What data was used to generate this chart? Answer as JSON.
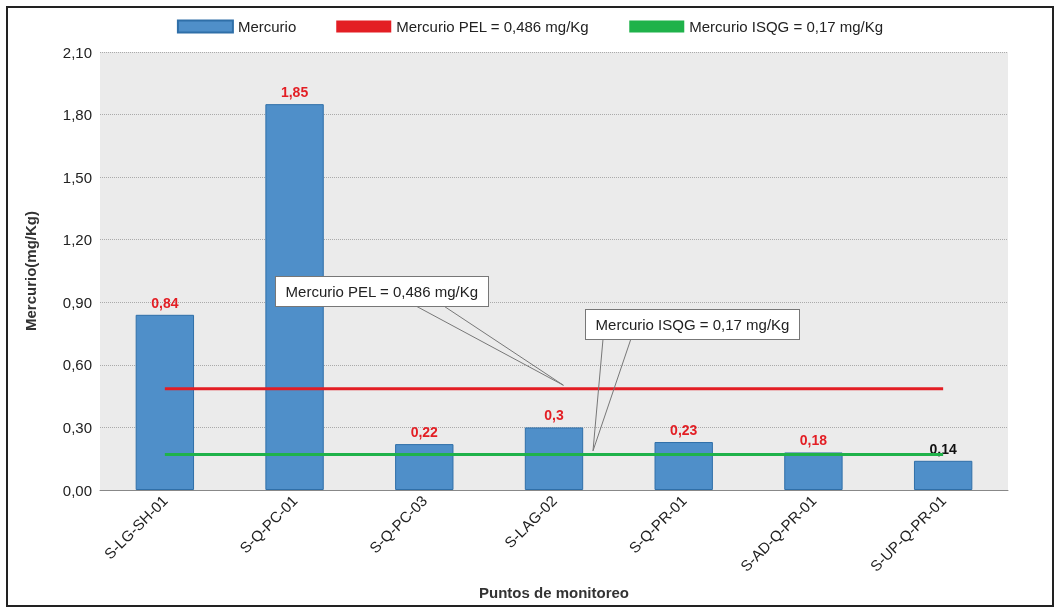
{
  "chart_data": {
    "type": "bar",
    "xlabel": "Puntos de monitoreo",
    "ylabel": "Mercurio(mg/Kg)",
    "categories": [
      "S-LG-SH-01",
      "S-Q-PC-01",
      "S-Q-PC-03",
      "S-LAG-02",
      "S-Q-PR-01",
      "S-AD-Q-PR-01",
      "S-UP-Q-PR-01"
    ],
    "series": [
      {
        "name": "Mercurio",
        "color": "#4f8fc9",
        "values": [
          0.84,
          1.85,
          0.22,
          0.3,
          0.23,
          0.18,
          0.14
        ],
        "value_labels": [
          "0,84",
          "1,85",
          "0,22",
          "0,3",
          "0,23",
          "0,18",
          "0,14"
        ]
      },
      {
        "name": "Mercurio PEL = 0,486 mg/Kg",
        "type": "line",
        "color": "#e31e24",
        "values": [
          0.486,
          0.486,
          0.486,
          0.486,
          0.486,
          0.486,
          0.486
        ]
      },
      {
        "name": "Mercurio ISQG = 0,17 mg/Kg",
        "type": "line",
        "color": "#1fb24a",
        "values": [
          0.17,
          0.17,
          0.17,
          0.17,
          0.17,
          0.17,
          0.17
        ]
      }
    ],
    "annotations": [
      "Mercurio PEL = 0,486 mg/Kg",
      "Mercurio ISQG = 0,17 mg/Kg"
    ],
    "ylim": [
      0,
      2.1
    ],
    "yticks": [
      {
        "value": 0,
        "label": "0,00"
      },
      {
        "value": 0.3,
        "label": "0,30"
      },
      {
        "value": 0.6,
        "label": "0,60"
      },
      {
        "value": 0.9,
        "label": "0,90"
      },
      {
        "value": 1.2,
        "label": "1,20"
      },
      {
        "value": 1.5,
        "label": "1,50"
      },
      {
        "value": 1.8,
        "label": "1,80"
      },
      {
        "value": 2.1,
        "label": "2,10"
      }
    ],
    "grid": "y",
    "legend": "top",
    "marker": "none"
  }
}
